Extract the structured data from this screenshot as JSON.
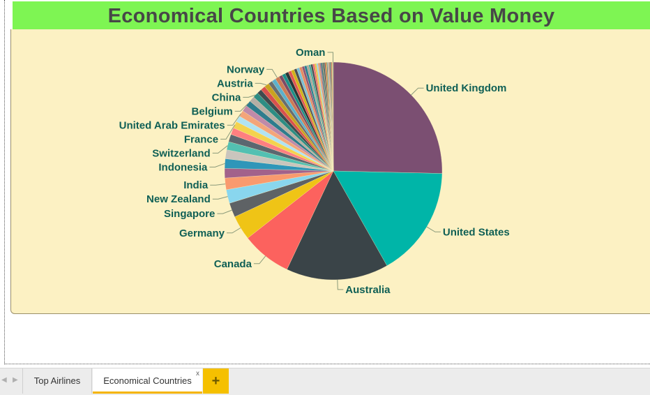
{
  "tabs": {
    "items": [
      {
        "label": "Top Airlines",
        "active": false
      },
      {
        "label": "Economical Countries",
        "active": true
      }
    ],
    "close_label": "x",
    "add_label": "+"
  },
  "colors": {
    "title_bar": "#7ef553",
    "panel": "#fcf1c3",
    "label_text": "#0f5f55",
    "leader": "#8a9a7a",
    "tab_accent": "#f5b400"
  },
  "chart_data": {
    "type": "pie",
    "title": "Economical Countries Based on Value Money",
    "slices": [
      {
        "label": "United Kingdom",
        "value": 25.0,
        "color": "#7b4f72"
      },
      {
        "label": "United States",
        "value": 16.2,
        "color": "#00b5a8"
      },
      {
        "label": "Australia",
        "value": 15.0,
        "color": "#3a4448"
      },
      {
        "label": "Canada",
        "value": 7.3,
        "color": "#fc625e"
      },
      {
        "label": "Germany",
        "value": 3.6,
        "color": "#efc416"
      },
      {
        "label": "Singapore",
        "value": 2.1,
        "color": "#5e6265"
      },
      {
        "label": "New Zealand",
        "value": 2.0,
        "color": "#89d6ee"
      },
      {
        "label": "India",
        "value": 1.7,
        "color": "#f99a6e"
      },
      {
        "label": "",
        "value": 1.4,
        "color": "#a2628b"
      },
      {
        "label": "Indonesia",
        "value": 1.4,
        "color": "#2f96b9"
      },
      {
        "label": "",
        "value": 1.3,
        "color": "#c9c5bd"
      },
      {
        "label": "Switzerland",
        "value": 1.2,
        "color": "#53c0b2"
      },
      {
        "label": "",
        "value": 1.1,
        "color": "#5b6770"
      },
      {
        "label": "",
        "value": 1.0,
        "color": "#fe7f80"
      },
      {
        "label": "France",
        "value": 1.0,
        "color": "#f3d34f"
      },
      {
        "label": "",
        "value": 0.9,
        "color": "#b0e3f3"
      },
      {
        "label": "United Arab Emirates",
        "value": 0.9,
        "color": "#f4a57a"
      },
      {
        "label": "",
        "value": 0.9,
        "color": "#c08aa9"
      },
      {
        "label": "Belgium",
        "value": 0.85,
        "color": "#2e7c8e"
      },
      {
        "label": "",
        "value": 0.8,
        "color": "#b5aea5"
      },
      {
        "label": "China",
        "value": 0.8,
        "color": "#2d8d84"
      },
      {
        "label": "",
        "value": 0.7,
        "color": "#3f4a4f"
      },
      {
        "label": "",
        "value": 0.7,
        "color": "#d9514e"
      },
      {
        "label": "Austria",
        "value": 0.7,
        "color": "#c9a320"
      },
      {
        "label": "",
        "value": 0.6,
        "color": "#696d70"
      },
      {
        "label": "",
        "value": 0.6,
        "color": "#5cb0cc"
      },
      {
        "label": "Norway",
        "value": 0.6,
        "color": "#cc7a56"
      },
      {
        "label": "",
        "value": 0.5,
        "color": "#7d4a66"
      },
      {
        "label": "",
        "value": 0.5,
        "color": "#1c8f8a"
      },
      {
        "label": "",
        "value": 0.5,
        "color": "#2b3538"
      },
      {
        "label": "",
        "value": 0.45,
        "color": "#e05652"
      },
      {
        "label": "",
        "value": 0.45,
        "color": "#d1b219"
      },
      {
        "label": "",
        "value": 0.4,
        "color": "#4c5053"
      },
      {
        "label": "",
        "value": 0.4,
        "color": "#7bbfd6"
      },
      {
        "label": "",
        "value": 0.4,
        "color": "#e58a64"
      },
      {
        "label": "",
        "value": 0.35,
        "color": "#8e5477"
      },
      {
        "label": "",
        "value": 0.35,
        "color": "#277f93"
      },
      {
        "label": "",
        "value": 0.3,
        "color": "#a7a49d"
      },
      {
        "label": "",
        "value": 0.3,
        "color": "#45a89c"
      },
      {
        "label": "",
        "value": 0.3,
        "color": "#454f57"
      },
      {
        "label": "",
        "value": 0.28,
        "color": "#f06c6c"
      },
      {
        "label": "",
        "value": 0.26,
        "color": "#e2c447"
      },
      {
        "label": "",
        "value": 0.24,
        "color": "#9bd0e2"
      },
      {
        "label": "",
        "value": 0.22,
        "color": "#e1946c"
      },
      {
        "label": "",
        "value": 0.2,
        "color": "#9c6b89"
      },
      {
        "label": "",
        "value": 0.2,
        "color": "#2a6e7e"
      },
      {
        "label": "",
        "value": 0.18,
        "color": "#6f6a62"
      },
      {
        "label": "",
        "value": 0.16,
        "color": "#1d5e58"
      },
      {
        "label": "",
        "value": 0.15,
        "color": "#b4424a"
      },
      {
        "label": "",
        "value": 0.14,
        "color": "#b89d2a"
      },
      {
        "label": "",
        "value": 0.13,
        "color": "#60646a"
      },
      {
        "label": "",
        "value": 0.12,
        "color": "#89c0d8"
      },
      {
        "label": "",
        "value": 0.12,
        "color": "#d3875e"
      },
      {
        "label": "",
        "value": 0.11,
        "color": "#7b5a72"
      },
      {
        "label": "",
        "value": 0.1,
        "color": "#2b7077"
      },
      {
        "label": "",
        "value": 0.1,
        "color": "#2c2c2c"
      },
      {
        "label": "",
        "value": 0.1,
        "color": "#c4483a"
      },
      {
        "label": "",
        "value": 0.1,
        "color": "#d6c068"
      },
      {
        "label": "Oman",
        "value": 0.1,
        "color": "#7a8b6d"
      }
    ]
  }
}
